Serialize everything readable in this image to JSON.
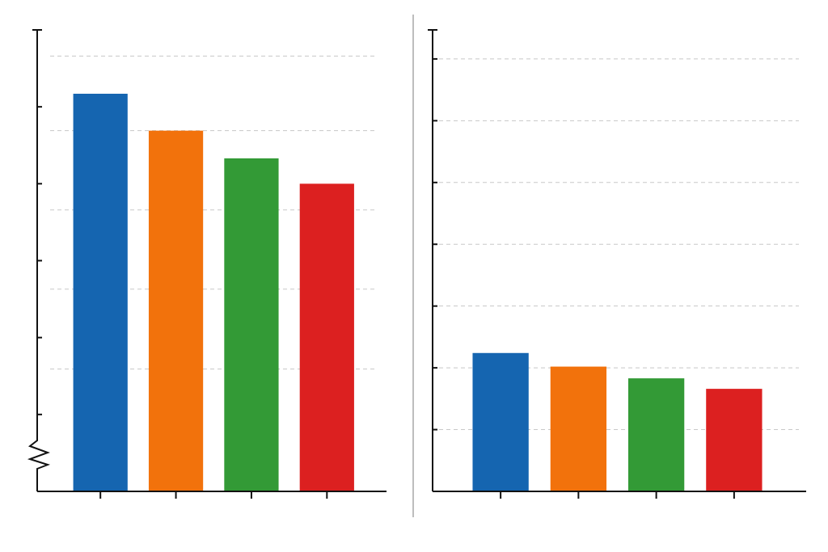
{
  "chart_data": [
    {
      "type": "bar",
      "categories": [
        null,
        null,
        null,
        null
      ],
      "values": [
        5.17,
        4.69,
        4.33,
        4.0
      ],
      "colors": [
        "#1565b0",
        "#f2720c",
        "#339a36",
        "#dc2020"
      ],
      "ylim": [
        0,
        6
      ],
      "yticks": [
        1,
        2,
        3,
        4,
        5,
        6
      ],
      "grid_lines": [
        1.59,
        2.63,
        3.66,
        4.69,
        5.66
      ],
      "axis_break": true
    },
    {
      "type": "bar",
      "categories": [
        null,
        null,
        null,
        null
      ],
      "values": [
        2.24,
        2.02,
        1.83,
        1.66
      ],
      "colors": [
        "#1565b0",
        "#f2720c",
        "#339a36",
        "#dc2020"
      ],
      "ylim": [
        0,
        7.47
      ],
      "yticks": [
        1,
        2,
        3,
        4,
        5,
        6,
        7,
        7.47
      ],
      "grid": true,
      "axis_break": false
    }
  ]
}
